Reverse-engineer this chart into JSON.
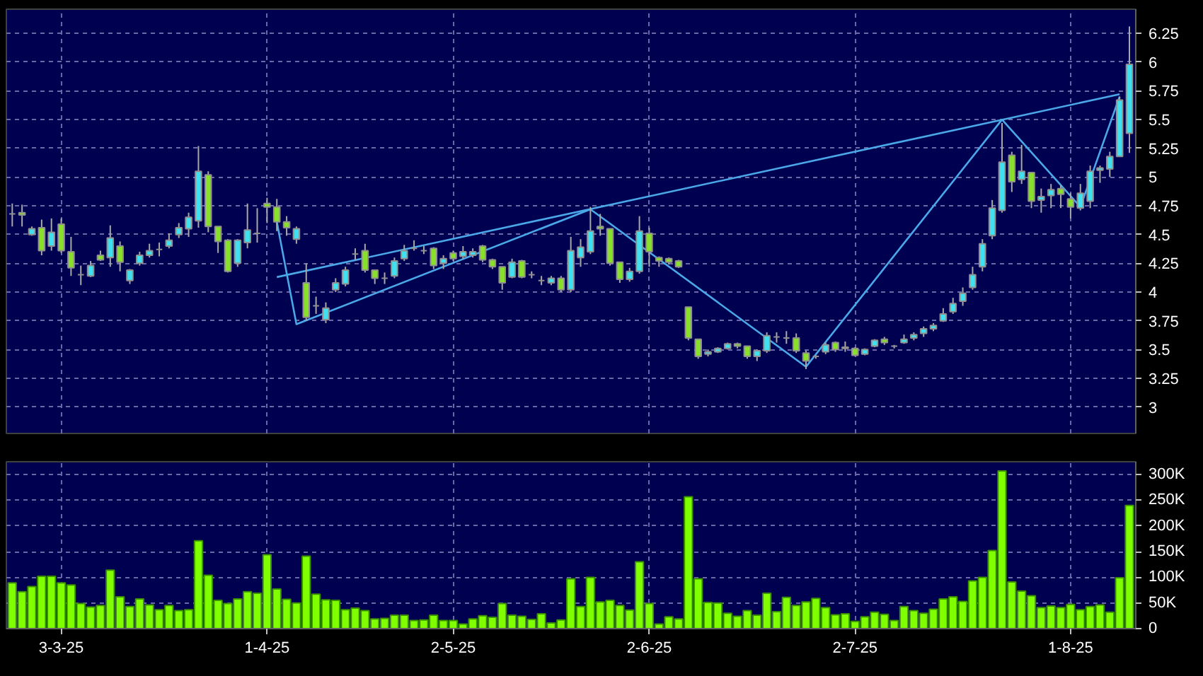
{
  "chart_data": [
    {
      "type": "candlestick",
      "tick_labels": "y",
      "grid": true,
      "categories": [
        null,
        null,
        null,
        null,
        null,
        null,
        null,
        null,
        null,
        null,
        null,
        null,
        null,
        null,
        null,
        null,
        null,
        null,
        null,
        null,
        null,
        null,
        null,
        null,
        null,
        null,
        null,
        null,
        null,
        null,
        null,
        null,
        null,
        null,
        null,
        null,
        null,
        null,
        null,
        null,
        null,
        null,
        null,
        null,
        null,
        null,
        null,
        null,
        null,
        null,
        null,
        null,
        null,
        null,
        null,
        null,
        null,
        null,
        null,
        null,
        null,
        null,
        null,
        null,
        null,
        null,
        null,
        null,
        null,
        null,
        null,
        null,
        null,
        null,
        null,
        null,
        null,
        null,
        null,
        null,
        null,
        null,
        null,
        null,
        null,
        null,
        null,
        null,
        null,
        null,
        null,
        null,
        null,
        null,
        null,
        null,
        null,
        null,
        null,
        null,
        null,
        null,
        null,
        null,
        null,
        null,
        null,
        null,
        null,
        null,
        null,
        null,
        null,
        null,
        null
      ],
      "ohlc": [
        [
          4.68,
          4.77,
          4.57,
          4.68
        ],
        [
          4.69,
          4.76,
          4.57,
          4.67
        ],
        [
          4.5,
          4.57,
          4.49,
          4.55
        ],
        [
          4.56,
          4.63,
          4.32,
          4.36
        ],
        [
          4.4,
          4.64,
          4.36,
          4.52
        ],
        [
          4.59,
          4.64,
          4.34,
          4.36
        ],
        [
          4.35,
          4.48,
          4.14,
          4.21
        ],
        [
          4.15,
          4.23,
          4.06,
          4.15
        ],
        [
          4.14,
          4.27,
          4.13,
          4.23
        ],
        [
          4.32,
          4.36,
          4.27,
          4.28
        ],
        [
          4.3,
          4.58,
          4.22,
          4.47
        ],
        [
          4.4,
          4.44,
          4.18,
          4.26
        ],
        [
          4.1,
          4.2,
          4.07,
          4.19
        ],
        [
          4.25,
          4.35,
          4.23,
          4.32
        ],
        [
          4.32,
          4.42,
          4.3,
          4.36
        ],
        [
          4.37,
          4.43,
          4.31,
          4.37
        ],
        [
          4.4,
          4.51,
          4.38,
          4.45
        ],
        [
          4.5,
          4.6,
          4.47,
          4.56
        ],
        [
          4.55,
          4.69,
          4.48,
          4.65
        ],
        [
          4.62,
          5.27,
          4.56,
          5.05
        ],
        [
          5.02,
          5.05,
          4.52,
          4.57
        ],
        [
          4.57,
          4.57,
          4.34,
          4.44
        ],
        [
          4.45,
          4.46,
          4.17,
          4.18
        ],
        [
          4.25,
          4.46,
          4.22,
          4.45
        ],
        [
          4.43,
          4.77,
          4.38,
          4.54
        ],
        [
          4.51,
          4.73,
          4.43,
          4.51
        ],
        [
          4.77,
          4.82,
          4.6,
          4.74
        ],
        [
          4.74,
          4.81,
          4.53,
          4.61
        ],
        [
          4.61,
          4.66,
          4.49,
          4.56
        ],
        [
          4.46,
          4.57,
          4.42,
          4.55
        ],
        [
          4.08,
          4.25,
          3.75,
          3.78
        ],
        [
          3.88,
          3.96,
          3.81,
          3.88
        ],
        [
          3.76,
          3.91,
          3.73,
          3.86
        ],
        [
          4.02,
          4.12,
          4.0,
          4.08
        ],
        [
          4.07,
          4.22,
          4.05,
          4.19
        ],
        [
          4.33,
          4.38,
          4.28,
          4.33
        ],
        [
          4.36,
          4.42,
          4.17,
          4.19
        ],
        [
          4.19,
          4.19,
          4.07,
          4.12
        ],
        [
          4.12,
          4.17,
          4.07,
          4.12
        ],
        [
          4.14,
          4.3,
          4.12,
          4.27
        ],
        [
          4.29,
          4.41,
          4.27,
          4.36
        ],
        [
          4.38,
          4.45,
          4.36,
          4.38
        ],
        [
          4.36,
          4.4,
          4.33,
          4.36
        ],
        [
          4.38,
          4.39,
          4.2,
          4.23
        ],
        [
          4.25,
          4.32,
          4.2,
          4.29
        ],
        [
          4.34,
          4.36,
          4.27,
          4.29
        ],
        [
          4.31,
          4.4,
          4.29,
          4.35
        ],
        [
          4.32,
          4.38,
          4.3,
          4.35
        ],
        [
          4.4,
          4.41,
          4.26,
          4.28
        ],
        [
          4.28,
          4.29,
          4.2,
          4.22
        ],
        [
          4.22,
          4.22,
          4.02,
          4.08
        ],
        [
          4.13,
          4.29,
          4.12,
          4.26
        ],
        [
          4.27,
          4.28,
          4.12,
          4.13
        ],
        [
          4.15,
          4.18,
          4.12,
          4.15
        ],
        [
          4.1,
          4.14,
          4.06,
          4.1
        ],
        [
          4.08,
          4.14,
          4.06,
          4.12
        ],
        [
          4.12,
          4.14,
          4.0,
          4.02
        ],
        [
          4.02,
          4.48,
          4.0,
          4.36
        ],
        [
          4.3,
          4.46,
          4.22,
          4.39
        ],
        [
          4.35,
          4.74,
          4.33,
          4.53
        ],
        [
          4.57,
          4.68,
          4.49,
          4.55
        ],
        [
          4.55,
          4.55,
          4.23,
          4.25
        ],
        [
          4.26,
          4.26,
          4.08,
          4.11
        ],
        [
          4.11,
          4.21,
          4.09,
          4.18
        ],
        [
          4.18,
          4.66,
          4.16,
          4.53
        ],
        [
          4.51,
          4.56,
          4.22,
          4.35
        ],
        [
          4.3,
          4.31,
          4.22,
          4.27
        ],
        [
          4.29,
          4.3,
          4.24,
          4.26
        ],
        [
          4.27,
          4.28,
          4.21,
          4.22
        ],
        [
          3.87,
          3.87,
          3.58,
          3.6
        ],
        [
          3.59,
          3.59,
          3.42,
          3.44
        ],
        [
          3.46,
          3.5,
          3.44,
          3.48
        ],
        [
          3.48,
          3.52,
          3.47,
          3.51
        ],
        [
          3.51,
          3.56,
          3.5,
          3.55
        ],
        [
          3.55,
          3.56,
          3.51,
          3.53
        ],
        [
          3.53,
          3.53,
          3.42,
          3.44
        ],
        [
          3.44,
          3.5,
          3.4,
          3.49
        ],
        [
          3.49,
          3.65,
          3.47,
          3.62
        ],
        [
          3.61,
          3.65,
          3.56,
          3.61
        ],
        [
          3.6,
          3.66,
          3.55,
          3.6
        ],
        [
          3.6,
          3.64,
          3.47,
          3.49
        ],
        [
          3.47,
          3.49,
          3.33,
          3.4
        ],
        [
          3.44,
          3.45,
          3.42,
          3.44
        ],
        [
          3.48,
          3.56,
          3.46,
          3.54
        ],
        [
          3.56,
          3.57,
          3.48,
          3.5
        ],
        [
          3.52,
          3.57,
          3.48,
          3.51
        ],
        [
          3.51,
          3.52,
          3.44,
          3.45
        ],
        [
          3.46,
          3.51,
          3.45,
          3.5
        ],
        [
          3.53,
          3.59,
          3.52,
          3.58
        ],
        [
          3.59,
          3.61,
          3.54,
          3.56
        ],
        [
          3.53,
          3.54,
          3.51,
          3.53
        ],
        [
          3.56,
          3.63,
          3.55,
          3.59
        ],
        [
          3.6,
          3.65,
          3.58,
          3.63
        ],
        [
          3.64,
          3.7,
          3.61,
          3.68
        ],
        [
          3.68,
          3.73,
          3.66,
          3.71
        ],
        [
          3.75,
          3.86,
          3.74,
          3.81
        ],
        [
          3.83,
          3.95,
          3.81,
          3.9
        ],
        [
          3.92,
          4.04,
          3.88,
          3.99
        ],
        [
          4.04,
          4.22,
          4.02,
          4.15
        ],
        [
          4.22,
          4.46,
          4.18,
          4.42
        ],
        [
          4.49,
          4.8,
          4.46,
          4.73
        ],
        [
          4.71,
          5.47,
          4.69,
          5.13
        ],
        [
          5.19,
          5.22,
          4.87,
          4.96
        ],
        [
          4.98,
          5.28,
          4.94,
          5.05
        ],
        [
          5.04,
          5.04,
          4.73,
          4.79
        ],
        [
          4.8,
          4.9,
          4.69,
          4.83
        ],
        [
          4.84,
          4.94,
          4.73,
          4.89
        ],
        [
          4.9,
          4.93,
          4.73,
          4.85
        ],
        [
          4.81,
          4.86,
          4.64,
          4.74
        ],
        [
          4.73,
          4.94,
          4.71,
          4.86
        ],
        [
          4.79,
          5.1,
          4.73,
          5.05
        ],
        [
          5.06,
          5.1,
          4.95,
          5.08
        ],
        [
          5.07,
          5.22,
          5.0,
          5.18
        ],
        [
          5.18,
          5.7,
          5.18,
          5.67
        ],
        [
          5.38,
          6.31,
          5.21,
          5.98
        ]
      ],
      "colors": [
        "#a0a0a0",
        "#88e02a",
        "#40e0f0",
        "#88e02a",
        "#40e0f0",
        "#88e02a",
        "#88e02a",
        "#a0a0a0",
        "#40e0f0",
        "#88e02a",
        "#40e0f0",
        "#88e02a",
        "#40e0f0",
        "#40e0f0",
        "#40e0f0",
        "#a0a0a0",
        "#40e0f0",
        "#40e0f0",
        "#40e0f0",
        "#40e0f0",
        "#88e02a",
        "#88e02a",
        "#88e02a",
        "#40e0f0",
        "#40e0f0",
        "#a0a0a0",
        "#88e02a",
        "#88e02a",
        "#88e02a",
        "#40e0f0",
        "#88e02a",
        "#a0a0a0",
        "#40e0f0",
        "#40e0f0",
        "#40e0f0",
        "#a0a0a0",
        "#88e02a",
        "#88e02a",
        "#a0a0a0",
        "#40e0f0",
        "#40e0f0",
        "#a0a0a0",
        "#a0a0a0",
        "#88e02a",
        "#40e0f0",
        "#88e02a",
        "#40e0f0",
        "#40e0f0",
        "#88e02a",
        "#88e02a",
        "#88e02a",
        "#40e0f0",
        "#88e02a",
        "#a0a0a0",
        "#a0a0a0",
        "#40e0f0",
        "#88e02a",
        "#40e0f0",
        "#40e0f0",
        "#40e0f0",
        "#88e02a",
        "#88e02a",
        "#88e02a",
        "#40e0f0",
        "#40e0f0",
        "#88e02a",
        "#88e02a",
        "#88e02a",
        "#88e02a",
        "#88e02a",
        "#88e02a",
        "#40e0f0",
        "#40e0f0",
        "#40e0f0",
        "#88e02a",
        "#88e02a",
        "#40e0f0",
        "#40e0f0",
        "#a0a0a0",
        "#a0a0a0",
        "#88e02a",
        "#88e02a",
        "#a0a0a0",
        "#40e0f0",
        "#88e02a",
        "#88e02a",
        "#88e02a",
        "#40e0f0",
        "#40e0f0",
        "#88e02a",
        "#a0a0a0",
        "#40e0f0",
        "#40e0f0",
        "#40e0f0",
        "#40e0f0",
        "#40e0f0",
        "#40e0f0",
        "#40e0f0",
        "#40e0f0",
        "#40e0f0",
        "#40e0f0",
        "#40e0f0",
        "#88e02a",
        "#40e0f0",
        "#88e02a",
        "#40e0f0",
        "#40e0f0",
        "#88e02a",
        "#88e02a",
        "#40e0f0",
        "#40e0f0",
        "#40e0f0",
        "#40e0f0",
        "#40e0f0",
        "#40e0f0"
      ],
      "series": [
        {
          "type": "line",
          "color": "#4aa8e8",
          "values": [
            null,
            null,
            null,
            null,
            null,
            null,
            null,
            null,
            null,
            null,
            null,
            null,
            null,
            null,
            null,
            null,
            null,
            null,
            null,
            null,
            null,
            null,
            null,
            null,
            null,
            null,
            null,
            4.13,
            null,
            null,
            null,
            null,
            null,
            null,
            null,
            null,
            null,
            null,
            null,
            null,
            null,
            null,
            null,
            null,
            null,
            null,
            null,
            null,
            null,
            null,
            null,
            null,
            null,
            null,
            null,
            null,
            null,
            null,
            null,
            null,
            null,
            null,
            null,
            null,
            null,
            null,
            null,
            null,
            null,
            null,
            null,
            null,
            null,
            null,
            null,
            null,
            null,
            null,
            null,
            null,
            null,
            null,
            null,
            null,
            null,
            null,
            null,
            null,
            null,
            null,
            null,
            null,
            null,
            null,
            null,
            null,
            null,
            null,
            null,
            null,
            null,
            null,
            null,
            null,
            null,
            null,
            null,
            null,
            null,
            null,
            null,
            null,
            null,
            5.72,
            null
          ]
        },
        {
          "type": "line",
          "color": "#4aa8e8",
          "values": [
            null,
            null,
            null,
            null,
            null,
            null,
            null,
            null,
            null,
            null,
            null,
            null,
            null,
            null,
            null,
            null,
            null,
            null,
            null,
            null,
            null,
            null,
            null,
            null,
            null,
            null,
            null,
            4.61,
            null,
            3.72,
            null,
            null,
            null,
            null,
            null,
            null,
            null,
            null,
            null,
            null,
            null,
            null,
            null,
            null,
            null,
            null,
            null,
            null,
            null,
            null,
            null,
            null,
            null,
            null,
            null,
            null,
            null,
            null,
            null,
            4.72,
            null,
            null,
            null,
            null,
            null,
            null,
            null,
            null,
            null,
            null,
            null,
            null,
            null,
            null,
            null,
            null,
            null,
            null,
            null,
            null,
            null,
            3.35,
            null,
            null,
            null,
            null,
            null,
            null,
            null,
            null,
            null,
            null,
            null,
            null,
            null,
            null,
            null,
            null,
            null,
            null,
            null,
            5.5,
            null,
            null,
            null,
            null,
            null,
            null,
            null,
            4.74,
            null,
            null,
            null,
            5.7,
            null
          ]
        }
      ],
      "ylim": [
        2.77,
        6.46
      ],
      "yticks": [
        3,
        3.25,
        3.5,
        3.75,
        4,
        4.25,
        4.5,
        4.75,
        5,
        5.25,
        5.5,
        5.75,
        6,
        6.25
      ]
    },
    {
      "type": "bar",
      "grid": true,
      "color": "#80ff00",
      "categories": [
        null,
        null,
        null,
        null,
        null,
        "3-3-25",
        null,
        null,
        null,
        null,
        null,
        null,
        null,
        null,
        null,
        null,
        null,
        null,
        null,
        null,
        null,
        null,
        null,
        null,
        null,
        null,
        "1-4-25",
        null,
        null,
        null,
        null,
        null,
        null,
        null,
        null,
        null,
        null,
        null,
        null,
        null,
        null,
        null,
        null,
        null,
        null,
        "2-5-25",
        null,
        null,
        null,
        null,
        null,
        null,
        null,
        null,
        null,
        null,
        null,
        null,
        null,
        null,
        null,
        null,
        null,
        null,
        null,
        "2-6-25",
        null,
        null,
        null,
        null,
        null,
        null,
        null,
        null,
        null,
        null,
        null,
        null,
        null,
        null,
        null,
        null,
        null,
        null,
        null,
        null,
        "2-7-25",
        null,
        null,
        null,
        null,
        null,
        null,
        null,
        null,
        null,
        null,
        null,
        null,
        null,
        null,
        null,
        null,
        null,
        null,
        null,
        null,
        null,
        "1-8-25",
        null,
        null,
        null,
        null,
        null,
        null
      ],
      "values": [
        89000,
        72000,
        82000,
        102000,
        102000,
        89000,
        85000,
        49000,
        42000,
        45000,
        114000,
        62000,
        43000,
        58000,
        46000,
        37000,
        45000,
        35000,
        37000,
        171000,
        104000,
        55000,
        49000,
        58000,
        72000,
        69000,
        144000,
        77000,
        57000,
        50000,
        141000,
        67000,
        56000,
        55000,
        37000,
        40000,
        35000,
        19000,
        20000,
        26000,
        26000,
        16000,
        17000,
        26000,
        16000,
        16000,
        9000,
        19000,
        25000,
        22000,
        49000,
        26000,
        24000,
        18000,
        29000,
        11000,
        17000,
        97000,
        43000,
        100000,
        52000,
        55000,
        45000,
        36000,
        130000,
        49000,
        9000,
        23000,
        19000,
        257000,
        97000,
        51000,
        50000,
        30000,
        24000,
        35000,
        26000,
        69000,
        33000,
        61000,
        45000,
        52000,
        59000,
        41000,
        27000,
        29000,
        14000,
        23000,
        32000,
        28000,
        16000,
        43000,
        35000,
        30000,
        38000,
        58000,
        62000,
        53000,
        93000,
        100000,
        152000,
        307000,
        91000,
        73000,
        64000,
        41000,
        44000,
        41000,
        47000,
        37000,
        43000,
        46000,
        32000,
        99000,
        240000
      ],
      "ylim": [
        0,
        325000
      ],
      "yticks": [
        0,
        {
          "value": 50000,
          "label": "50K"
        },
        {
          "value": 100000,
          "label": "100K"
        },
        {
          "value": 150000,
          "label": "150K"
        },
        {
          "value": 200000,
          "label": "200K"
        },
        {
          "value": 250000,
          "label": "250K"
        },
        {
          "value": 300000,
          "label": "300K"
        }
      ]
    }
  ]
}
